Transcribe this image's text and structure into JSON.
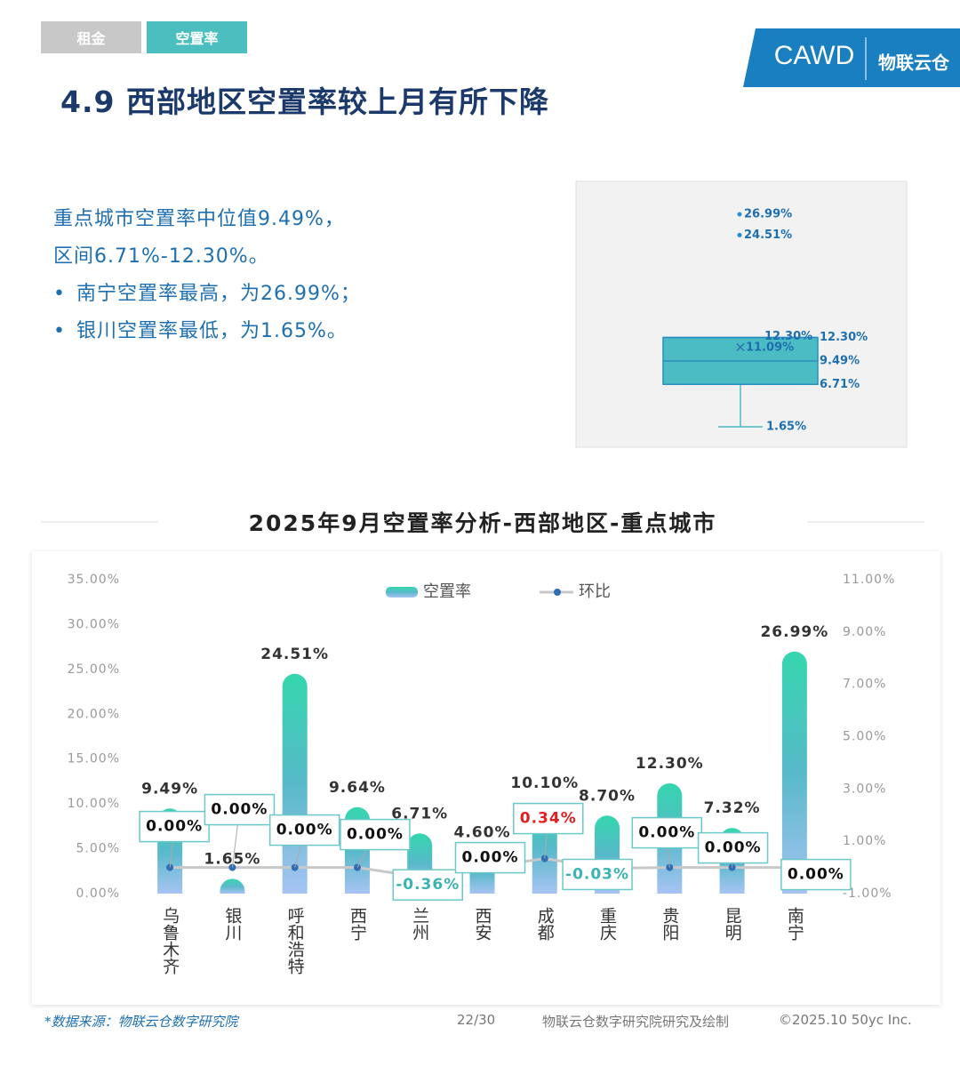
{
  "tabs": [
    "租金",
    "空置率"
  ],
  "logo": {
    "name": "CAWD",
    "brand": "物联云仓"
  },
  "title": "4.9 西部地区空置率较上月有所下降",
  "summary": {
    "lines": [
      "重点城市空置率中位值9.49%，",
      "区间6.71%-12.30%。"
    ],
    "bullets": [
      "南宁空置率最高，为26.99%；",
      "银川空置率最低，为1.65%。"
    ]
  },
  "chart_data": [
    {
      "type": "box",
      "values": {
        "min": 1.65,
        "q1": 6.71,
        "median": 9.49,
        "q3": 12.3,
        "max": 12.3,
        "mean": 11.09,
        "outliers": [
          26.99,
          24.51
        ]
      },
      "value_labels": {
        "min": "1.65%",
        "q1": "6.71%",
        "median": "9.49%",
        "q3": "12.30%",
        "max": "12.30%",
        "mean": "11.09%",
        "outliers": [
          "26.99%",
          "24.51%"
        ]
      },
      "color": "#4bbcc4"
    },
    {
      "type": "bar-line",
      "title": "2025年9月空置率分析-西部地区-重点城市",
      "categories": [
        "乌鲁木齐",
        "银川",
        "呼和浩特",
        "西宁",
        "兰州",
        "西安",
        "成都",
        "重庆",
        "贵阳",
        "昆明",
        "南宁"
      ],
      "series": [
        {
          "name": "空置率",
          "type": "bar",
          "color": "#3dc9b4",
          "values": [
            9.49,
            1.65,
            24.51,
            9.64,
            6.71,
            4.6,
            10.1,
            8.7,
            12.3,
            7.32,
            26.99
          ],
          "value_labels": [
            "9.49%",
            "1.65%",
            "24.51%",
            "9.64%",
            "6.71%",
            "4.60%",
            "10.10%",
            "8.70%",
            "12.30%",
            "7.32%",
            "26.99%"
          ]
        },
        {
          "name": "环比",
          "type": "line",
          "axis": "y2",
          "color": "#2f6db5",
          "values": [
            0,
            0,
            0,
            0,
            -0.36,
            0,
            0.34,
            -0.03,
            0,
            0,
            0
          ],
          "value_labels": [
            "0.00%",
            "0.00%",
            "0.00%",
            "0.00%",
            "-0.36%",
            "0.00%",
            "0.34%",
            "-0.03%",
            "0.00%",
            "0.00%",
            "0.00%"
          ]
        }
      ],
      "ylim": [
        0,
        35
      ],
      "yticks": [
        {
          "value": 0,
          "label": "0.00%"
        },
        {
          "value": 5,
          "label": "5.00%"
        },
        {
          "value": 10,
          "label": "10.00%"
        },
        {
          "value": 15,
          "label": "15.00%"
        },
        {
          "value": 20,
          "label": "20.00%"
        },
        {
          "value": 25,
          "label": "25.00%"
        },
        {
          "value": 30,
          "label": "30.00%"
        },
        {
          "value": 35,
          "label": "35.00%"
        }
      ],
      "y2lim": [
        -1,
        11
      ],
      "y2ticks": [
        {
          "value": -1,
          "label": "-1.00%"
        },
        {
          "value": 1,
          "label": "1.00%"
        },
        {
          "value": 3,
          "label": "3.00%"
        },
        {
          "value": 5,
          "label": "5.00%"
        },
        {
          "value": 7,
          "label": "7.00%"
        },
        {
          "value": 9,
          "label": "9.00%"
        },
        {
          "value": 11,
          "label": "11.00%"
        }
      ],
      "grid": false,
      "legend": "top"
    }
  ],
  "footer": {
    "source": "*数据来源：物联云仓数字研究院",
    "page": "22/30",
    "credit": "物联云仓数字研究院研究及绘制",
    "copyright": "©2025.10 50yc Inc."
  }
}
